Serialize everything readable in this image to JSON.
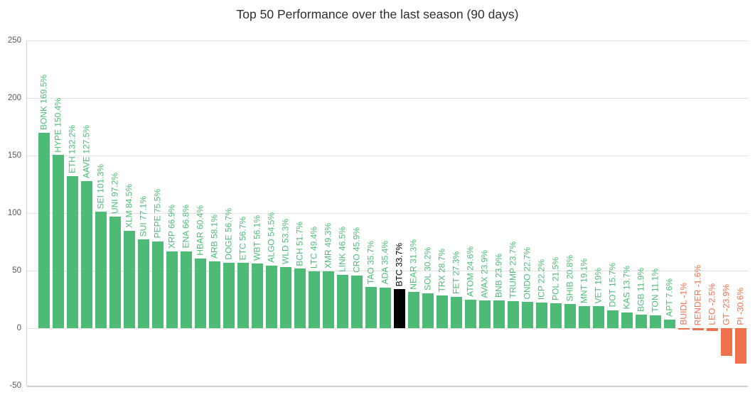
{
  "chart_data": {
    "type": "bar",
    "title": "Top 50 Performance over the last season (90 days)",
    "xlabel": "",
    "ylabel": "",
    "ylim": [
      -50,
      250
    ],
    "yticks": [
      250,
      200,
      150,
      100,
      50,
      0,
      -50
    ],
    "grid": true,
    "legend": false,
    "highlighted_category": "BTC",
    "categories": [
      "BONK",
      "HYPE",
      "ETH",
      "AAVE",
      "SEI",
      "UNI",
      "XLM",
      "SUI",
      "PEPE",
      "XRP",
      "ENA",
      "HBAR",
      "ARB",
      "DOGE",
      "ETC",
      "WBT",
      "ALGO",
      "WLD",
      "BCH",
      "LTC",
      "XMR",
      "LINK",
      "CRO",
      "TAO",
      "ADA",
      "BTC",
      "NEAR",
      "SOL",
      "TRX",
      "FET",
      "ATOM",
      "AVAX",
      "BNB",
      "TRUMP",
      "ONDO",
      "ICP",
      "POL",
      "SHIB",
      "MNT",
      "VET",
      "DOT",
      "KAS",
      "BGB",
      "TON",
      "APT",
      "BUIDL",
      "RENDER",
      "LEO",
      "GT",
      "PI"
    ],
    "values": [
      169.5,
      150.4,
      132.2,
      127.5,
      101.3,
      97.2,
      84.5,
      77.1,
      75.5,
      66.9,
      66.8,
      60.4,
      58.1,
      56.7,
      56.7,
      56.1,
      54.5,
      53.3,
      51.7,
      49.4,
      49.3,
      46.5,
      45.9,
      35.7,
      35.4,
      33.7,
      31.3,
      30.2,
      28.7,
      27.3,
      24.6,
      23.9,
      23.9,
      23.7,
      22.7,
      22.2,
      21.5,
      20.8,
      19.1,
      19,
      15.7,
      13.7,
      11.9,
      11.1,
      7.6,
      -1,
      -1.6,
      -2.5,
      -23.9,
      -30.6
    ],
    "bar_labels": [
      "BONK 169.5%",
      "HYPE 150.4%",
      "ETH 132.2%",
      "AAVE 127.5%",
      "SEI 101.3%",
      "UNI 97.2%",
      "XLM 84.5%",
      "SUI 77.1%",
      "PEPE 75.5%",
      "XRP 66.9%",
      "ENA 66.8%",
      "HBAR 60.4%",
      "ARB 58.1%",
      "DOGE 56.7%",
      "ETC 56.7%",
      "WBT 56.1%",
      "ALGO 54.5%",
      "WLD 53.3%",
      "BCH 51.7%",
      "LTC 49.4%",
      "XMR 49.3%",
      "LINK 46.5%",
      "CRO 45.9%",
      "TAO 35.7%",
      "ADA 35.4%",
      "BTC 33.7%",
      "NEAR 31.3%",
      "SOL 30.2%",
      "TRX 28.7%",
      "FET 27.3%",
      "ATOM 24.6%",
      "AVAX 23.9%",
      "BNB 23.9%",
      "TRUMP 23.7%",
      "ONDO 22.7%",
      "ICP 22.2%",
      "POL 21.5%",
      "SHIB 20.8%",
      "MNT 19.1%",
      "VET 19%",
      "DOT 15.7%",
      "KAS 13.7%",
      "BGB 11.9%",
      "TON 11.1%",
      "APT 7.6%",
      "BUIDL -1%",
      "RENDER -1.6%",
      "LEO -2.5%",
      "GT -23.9%",
      "PI -30.6%"
    ],
    "colors": {
      "positive": "#4dbb76",
      "negative": "#f0714e",
      "highlight": "#000000"
    }
  },
  "style": {
    "grid_color": "#e2e2e2",
    "baseline_color": "#cfcfcf",
    "axis_line_color": "#d6d6d6",
    "tick_text_color": "#5a5a5a",
    "title_color": "#2e2e2e",
    "background": "#ffffff"
  }
}
